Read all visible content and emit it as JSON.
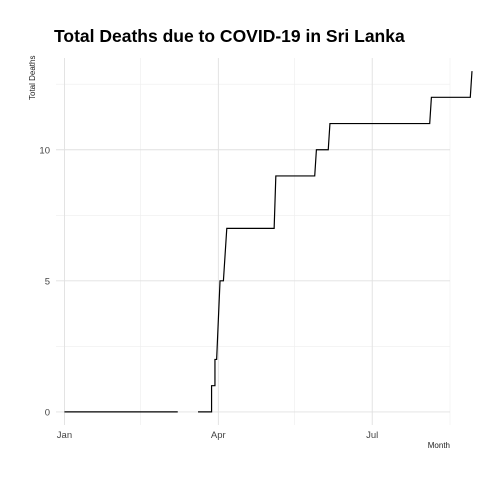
{
  "chart_data": {
    "type": "line",
    "title": "Total Deaths due to COVID-19 in Sri Lanka",
    "xlabel": "Month",
    "ylabel": "Total Deaths",
    "x_ticks": [
      "Jan",
      "Apr",
      "Jul"
    ],
    "y_ticks": [
      0,
      5,
      10
    ],
    "ylim": [
      -0.5,
      13.5
    ],
    "xlim_days": [
      -5,
      228
    ],
    "grid": true,
    "legend": "none",
    "line_color": "#000000",
    "series": [
      {
        "segments": [
          [
            {
              "x": "2020-01-01",
              "y": 0
            },
            {
              "x": "2020-03-08",
              "y": 0
            }
          ],
          [
            {
              "x": "2020-03-20",
              "y": 0
            },
            {
              "x": "2020-03-28",
              "y": 0
            },
            {
              "x": "2020-03-28",
              "y": 1
            },
            {
              "x": "2020-03-30",
              "y": 1
            },
            {
              "x": "2020-03-30",
              "y": 2
            },
            {
              "x": "2020-03-31",
              "y": 2
            },
            {
              "x": "2020-04-02",
              "y": 5
            },
            {
              "x": "2020-04-04",
              "y": 5
            },
            {
              "x": "2020-04-06",
              "y": 7
            },
            {
              "x": "2020-05-04",
              "y": 7
            },
            {
              "x": "2020-05-05",
              "y": 9
            },
            {
              "x": "2020-05-28",
              "y": 9
            },
            {
              "x": "2020-05-29",
              "y": 10
            },
            {
              "x": "2020-06-05",
              "y": 10
            },
            {
              "x": "2020-06-06",
              "y": 11
            },
            {
              "x": "2020-08-04",
              "y": 11
            },
            {
              "x": "2020-08-05",
              "y": 12
            },
            {
              "x": "2020-08-28",
              "y": 12
            },
            {
              "x": "2020-08-29",
              "y": 13
            }
          ]
        ]
      }
    ]
  }
}
